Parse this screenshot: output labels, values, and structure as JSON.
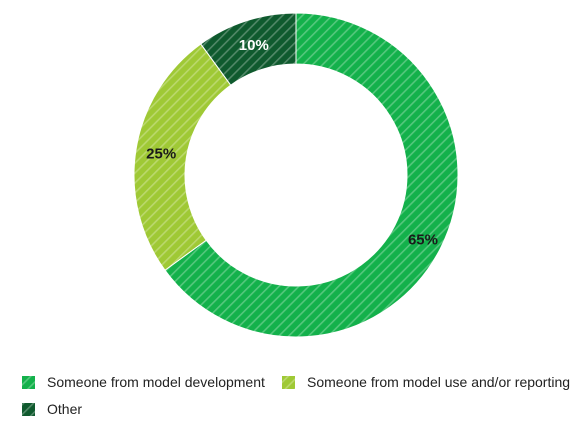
{
  "chart_data": {
    "type": "pie",
    "title": "",
    "slices": [
      {
        "label": "Someone from model development",
        "value": 65,
        "display": "65%",
        "color": "#13b14b",
        "label_color": "#1a1a1a"
      },
      {
        "label": "Someone from model use and/or reporting",
        "value": 25,
        "display": "25%",
        "color": "#9fc935",
        "label_color": "#1a1a1a"
      },
      {
        "label": "Other",
        "value": 10,
        "display": "10%",
        "color": "#0f5a2e",
        "label_color": "#ffffff"
      }
    ],
    "legend_position": "bottom-left",
    "donut": true,
    "pattern": "diagonal-stripes"
  }
}
